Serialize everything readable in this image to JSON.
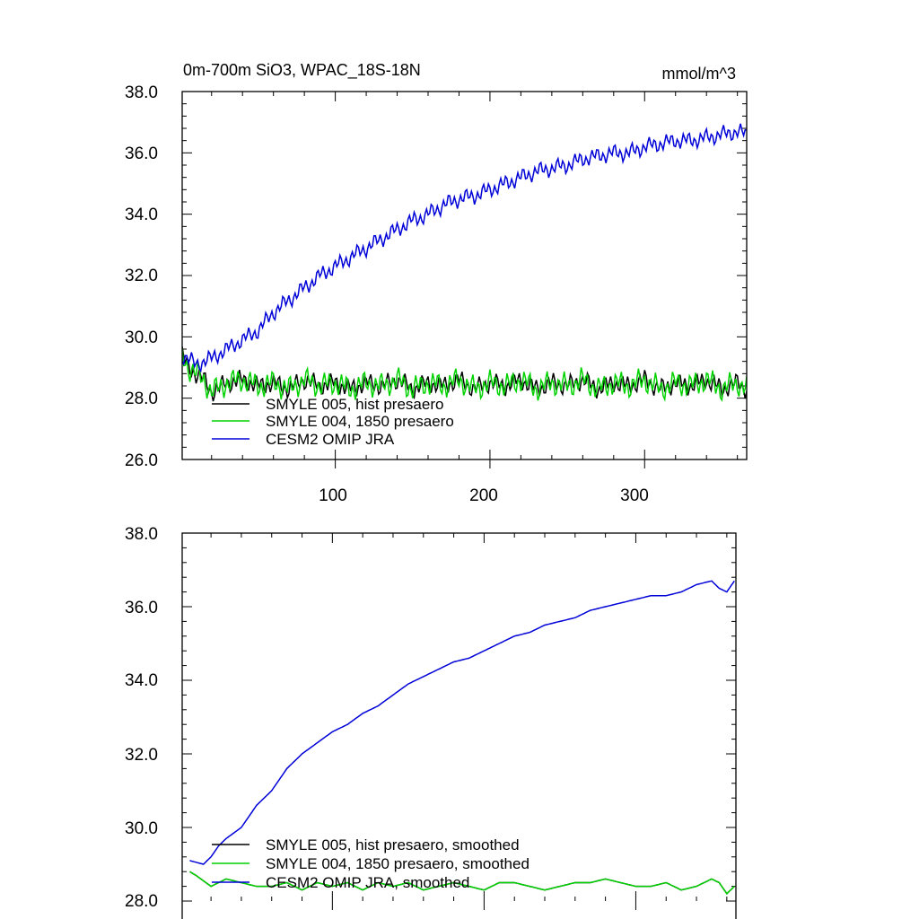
{
  "chart_data": [
    {
      "type": "line",
      "title": "0m-700m SiO3, WPAC_18S-18N",
      "units": "mmol/m^3",
      "xlim": [
        1,
        366
      ],
      "ylim": [
        26.0,
        38.0
      ],
      "xticks": [
        100,
        200,
        300
      ],
      "xtick_labels": [
        "100",
        "200",
        "300"
      ],
      "yticks": [
        26.0,
        28.0,
        30.0,
        32.0,
        34.0,
        36.0,
        38.0
      ],
      "ytick_labels": [
        "26.0",
        "28.0",
        "30.0",
        "32.0",
        "34.0",
        "36.0",
        "38.0"
      ],
      "legend_position": "bottom-left",
      "series": [
        {
          "name": "SMYLE 005, hist presaero",
          "color": "#000000",
          "x": [
            1,
            5,
            10,
            15,
            20,
            30,
            40,
            50,
            60,
            70,
            80,
            90,
            100,
            110,
            120,
            130,
            140,
            150,
            160,
            170,
            180,
            190,
            200,
            210,
            220,
            230,
            240,
            250,
            260,
            270,
            280,
            290,
            300,
            310,
            320,
            330,
            340,
            350,
            360,
            366
          ],
          "values": [
            29.4,
            29.0,
            28.8,
            28.6,
            28.2,
            28.5,
            28.6,
            28.4,
            28.5,
            28.3,
            28.6,
            28.4,
            28.5,
            28.3,
            28.5,
            28.4,
            28.6,
            28.3,
            28.5,
            28.4,
            28.6,
            28.3,
            28.5,
            28.4,
            28.6,
            28.3,
            28.5,
            28.4,
            28.6,
            28.3,
            28.5,
            28.4,
            28.6,
            28.3,
            28.5,
            28.4,
            28.6,
            28.3,
            28.5,
            28.3
          ]
        },
        {
          "name": "SMYLE 004, 1850 presaero",
          "color": "#00d200",
          "x": [
            1,
            5,
            10,
            15,
            20,
            30,
            40,
            50,
            60,
            70,
            80,
            90,
            100,
            110,
            120,
            130,
            140,
            150,
            160,
            170,
            180,
            190,
            200,
            210,
            220,
            230,
            240,
            250,
            260,
            270,
            280,
            290,
            300,
            310,
            320,
            330,
            340,
            350,
            360,
            366
          ],
          "values": [
            29.4,
            29.0,
            28.8,
            28.6,
            28.2,
            28.5,
            28.6,
            28.4,
            28.5,
            28.3,
            28.6,
            28.4,
            28.5,
            28.3,
            28.5,
            28.4,
            28.6,
            28.3,
            28.5,
            28.4,
            28.6,
            28.3,
            28.5,
            28.4,
            28.6,
            28.3,
            28.5,
            28.4,
            28.6,
            28.3,
            28.5,
            28.4,
            28.6,
            28.3,
            28.5,
            28.4,
            28.6,
            28.3,
            28.5,
            28.3
          ]
        },
        {
          "name": "CESM2 OMIP JRA",
          "color": "#0000d8",
          "x": [
            1,
            10,
            20,
            30,
            40,
            50,
            60,
            70,
            80,
            90,
            100,
            110,
            120,
            130,
            140,
            150,
            160,
            170,
            180,
            190,
            200,
            210,
            220,
            230,
            240,
            250,
            260,
            270,
            280,
            290,
            300,
            310,
            320,
            330,
            340,
            350,
            360,
            366
          ],
          "values": [
            29.4,
            29.1,
            29.3,
            29.6,
            29.9,
            30.2,
            30.8,
            31.2,
            31.6,
            32.0,
            32.3,
            32.6,
            32.9,
            33.2,
            33.5,
            33.8,
            34.0,
            34.3,
            34.5,
            34.6,
            34.8,
            35.0,
            35.2,
            35.4,
            35.5,
            35.6,
            35.8,
            35.9,
            36.0,
            36.0,
            36.2,
            36.3,
            36.4,
            36.4,
            36.5,
            36.6,
            36.7,
            36.6
          ]
        }
      ]
    },
    {
      "type": "line",
      "xlim": [
        1,
        366
      ],
      "ylim": [
        28.0,
        38.0
      ],
      "xticks": [
        100,
        200,
        300
      ],
      "yticks": [
        28.0,
        30.0,
        32.0,
        34.0,
        36.0,
        38.0
      ],
      "ytick_labels": [
        "28.0",
        "30.0",
        "32.0",
        "34.0",
        "36.0",
        "38.0"
      ],
      "legend_position": "bottom-left",
      "series": [
        {
          "name": "SMYLE 005, hist presaero, smoothed",
          "color": "#000000",
          "x": [
            6,
            10,
            20,
            30,
            40,
            50,
            60,
            70,
            80,
            90,
            100,
            110,
            120,
            130,
            140,
            150,
            160,
            170,
            180,
            190,
            200,
            210,
            220,
            230,
            240,
            250,
            260,
            270,
            280,
            290,
            300,
            310,
            320,
            330,
            340,
            350,
            355,
            360,
            365
          ],
          "values": [
            28.8,
            28.7,
            28.4,
            28.6,
            28.5,
            28.4,
            28.4,
            28.5,
            28.3,
            28.5,
            28.4,
            28.5,
            28.3,
            28.5,
            28.4,
            28.5,
            28.3,
            28.4,
            28.5,
            28.4,
            28.3,
            28.5,
            28.5,
            28.4,
            28.3,
            28.4,
            28.5,
            28.5,
            28.6,
            28.5,
            28.4,
            28.4,
            28.5,
            28.3,
            28.4,
            28.6,
            28.5,
            28.2,
            28.4
          ]
        },
        {
          "name": "SMYLE 004, 1850 presaero, smoothed",
          "color": "#00d200",
          "x": [
            6,
            10,
            20,
            30,
            40,
            50,
            60,
            70,
            80,
            90,
            100,
            110,
            120,
            130,
            140,
            150,
            160,
            170,
            180,
            190,
            200,
            210,
            220,
            230,
            240,
            250,
            260,
            270,
            280,
            290,
            300,
            310,
            320,
            330,
            340,
            350,
            355,
            360,
            365
          ],
          "values": [
            28.8,
            28.7,
            28.4,
            28.6,
            28.5,
            28.4,
            28.4,
            28.5,
            28.3,
            28.5,
            28.4,
            28.5,
            28.3,
            28.5,
            28.4,
            28.5,
            28.3,
            28.4,
            28.5,
            28.4,
            28.3,
            28.5,
            28.5,
            28.4,
            28.3,
            28.4,
            28.5,
            28.5,
            28.6,
            28.5,
            28.4,
            28.4,
            28.5,
            28.3,
            28.4,
            28.6,
            28.5,
            28.2,
            28.4
          ]
        },
        {
          "name": "CESM2 OMIP JRA, smoothed",
          "color": "#0000d8",
          "x": [
            6,
            15,
            20,
            25,
            30,
            40,
            50,
            60,
            70,
            80,
            90,
            100,
            110,
            120,
            130,
            140,
            150,
            160,
            170,
            180,
            190,
            200,
            210,
            220,
            230,
            240,
            250,
            260,
            270,
            280,
            290,
            300,
            310,
            320,
            330,
            340,
            350,
            355,
            360,
            365
          ],
          "values": [
            29.1,
            29.0,
            29.2,
            29.5,
            29.7,
            30.0,
            30.6,
            31.0,
            31.6,
            32.0,
            32.3,
            32.6,
            32.8,
            33.1,
            33.3,
            33.6,
            33.9,
            34.1,
            34.3,
            34.5,
            34.6,
            34.8,
            35.0,
            35.2,
            35.3,
            35.5,
            35.6,
            35.7,
            35.9,
            36.0,
            36.1,
            36.2,
            36.3,
            36.3,
            36.4,
            36.6,
            36.7,
            36.5,
            36.4,
            36.7
          ]
        }
      ]
    }
  ]
}
